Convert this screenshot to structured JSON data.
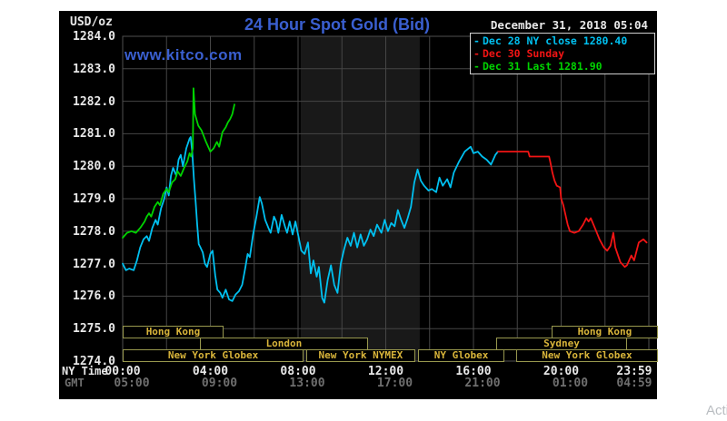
{
  "header": {
    "unit": "USD/oz",
    "title": "24 Hour Spot Gold (Bid)",
    "datetime": "December 31, 2018 05:04",
    "watermark": "www.kitco.com",
    "title_color": "#3a5fd0"
  },
  "legend": {
    "items": [
      {
        "dash": "-",
        "label": "Dec 28 NY close 1280.40",
        "color": "#00c0f0"
      },
      {
        "dash": "-",
        "label": "Dec 30 Sunday",
        "color": "#f21414"
      },
      {
        "dash": "-",
        "label": "Dec 31 Last 1281.90",
        "color": "#00d300"
      }
    ]
  },
  "axes": {
    "y_ticks": [
      "1284.0",
      "1283.0",
      "1282.0",
      "1281.0",
      "1280.0",
      "1279.0",
      "1278.0",
      "1277.0",
      "1276.0",
      "1275.0",
      "1274.0"
    ],
    "ny_label": "NY Time",
    "gmt_label": "GMT",
    "ny_ticks": [
      {
        "t": 0,
        "label": "00:00"
      },
      {
        "t": 4,
        "label": "04:00"
      },
      {
        "t": 8,
        "label": "08:00"
      },
      {
        "t": 12,
        "label": "12:00"
      },
      {
        "t": 16,
        "label": "16:00"
      },
      {
        "t": 20,
        "label": "20:00"
      },
      {
        "t": 23.98,
        "label": "23:59",
        "align": "right"
      }
    ],
    "gmt_ticks": [
      {
        "t": 0,
        "label": "05:00"
      },
      {
        "t": 4,
        "label": "09:00"
      },
      {
        "t": 8,
        "label": "13:00"
      },
      {
        "t": 12,
        "label": "17:00"
      },
      {
        "t": 16,
        "label": "21:00"
      },
      {
        "t": 20,
        "label": "01:00"
      },
      {
        "t": 23.98,
        "label": "04:59",
        "align": "right"
      }
    ]
  },
  "sessions": [
    {
      "row": 1,
      "label": "Hong Kong",
      "start": 0,
      "end": 4.52
    },
    {
      "row": 1,
      "label": "Hong Kong",
      "start": 19.56,
      "end": 24.33
    },
    {
      "row": 2,
      "label": "London",
      "start": 3.52,
      "end": 11.11
    },
    {
      "row": 2,
      "label": "Sydney",
      "start": 17.04,
      "end": 22.92
    },
    {
      "row": 3,
      "label": "New York Globex",
      "start": 0,
      "end": 8.17
    },
    {
      "row": 3,
      "label": "New York NYMEX",
      "start": 8.37,
      "end": 13.26
    },
    {
      "row": 3,
      "label": "NY Globex",
      "start": 13.47,
      "end": 17.33
    },
    {
      "row": 3,
      "label": "New York Globex",
      "start": 17.95,
      "end": 24.33
    }
  ],
  "artifact_text": "Activ",
  "chart_data": {
    "type": "line",
    "title": "24 Hour Spot Gold (Bid)",
    "subtitle": "December 31, 2018 05:04",
    "xlabel": "NY Time",
    "ylabel": "USD/oz",
    "x_range_hours": [
      0,
      24
    ],
    "ylim": [
      1274.0,
      1284.0
    ],
    "y_tick_step": 1.0,
    "grid": true,
    "grid_color": "#464646",
    "background": "#000000",
    "nymex_band_hours": [
      8.12,
      13.55
    ],
    "band_color": "#191919",
    "legend_position": "top-right",
    "series": [
      {
        "name": "Dec 28 NY close 1280.40",
        "color": "#00c0f0",
        "points": [
          [
            0.0,
            1277.0
          ],
          [
            0.15,
            1276.8
          ],
          [
            0.3,
            1276.85
          ],
          [
            0.5,
            1276.8
          ],
          [
            0.65,
            1277.1
          ],
          [
            0.8,
            1277.5
          ],
          [
            0.95,
            1277.75
          ],
          [
            1.1,
            1277.85
          ],
          [
            1.2,
            1277.7
          ],
          [
            1.35,
            1278.1
          ],
          [
            1.5,
            1278.35
          ],
          [
            1.6,
            1278.2
          ],
          [
            1.75,
            1278.7
          ],
          [
            1.9,
            1279.0
          ],
          [
            2.0,
            1279.35
          ],
          [
            2.1,
            1279.1
          ],
          [
            2.2,
            1279.7
          ],
          [
            2.3,
            1279.95
          ],
          [
            2.45,
            1279.7
          ],
          [
            2.55,
            1280.2
          ],
          [
            2.65,
            1280.35
          ],
          [
            2.75,
            1280.0
          ],
          [
            2.9,
            1280.55
          ],
          [
            3.05,
            1280.85
          ],
          [
            3.1,
            1280.9
          ],
          [
            3.17,
            1280.45
          ],
          [
            3.25,
            1279.6
          ],
          [
            3.33,
            1278.9
          ],
          [
            3.4,
            1278.2
          ],
          [
            3.47,
            1277.6
          ],
          [
            3.55,
            1277.5
          ],
          [
            3.65,
            1277.35
          ],
          [
            3.75,
            1277.0
          ],
          [
            3.85,
            1276.9
          ],
          [
            4.0,
            1277.3
          ],
          [
            4.1,
            1277.4
          ],
          [
            4.22,
            1276.65
          ],
          [
            4.32,
            1276.2
          ],
          [
            4.45,
            1276.1
          ],
          [
            4.55,
            1275.95
          ],
          [
            4.7,
            1276.2
          ],
          [
            4.85,
            1275.9
          ],
          [
            5.0,
            1275.85
          ],
          [
            5.15,
            1276.05
          ],
          [
            5.3,
            1276.15
          ],
          [
            5.45,
            1276.35
          ],
          [
            5.6,
            1276.9
          ],
          [
            5.7,
            1277.3
          ],
          [
            5.8,
            1277.2
          ],
          [
            5.95,
            1277.9
          ],
          [
            6.1,
            1278.45
          ],
          [
            6.25,
            1279.05
          ],
          [
            6.35,
            1278.85
          ],
          [
            6.5,
            1278.35
          ],
          [
            6.65,
            1278.1
          ],
          [
            6.75,
            1277.95
          ],
          [
            6.9,
            1278.45
          ],
          [
            7.0,
            1278.3
          ],
          [
            7.1,
            1277.95
          ],
          [
            7.25,
            1278.5
          ],
          [
            7.4,
            1278.15
          ],
          [
            7.5,
            1277.95
          ],
          [
            7.62,
            1278.3
          ],
          [
            7.75,
            1277.9
          ],
          [
            7.88,
            1278.3
          ],
          [
            8.0,
            1277.9
          ],
          [
            8.15,
            1277.4
          ],
          [
            8.3,
            1277.3
          ],
          [
            8.45,
            1277.65
          ],
          [
            8.58,
            1276.7
          ],
          [
            8.7,
            1277.1
          ],
          [
            8.85,
            1276.6
          ],
          [
            8.95,
            1276.9
          ],
          [
            9.1,
            1275.95
          ],
          [
            9.2,
            1275.8
          ],
          [
            9.35,
            1276.5
          ],
          [
            9.5,
            1276.95
          ],
          [
            9.65,
            1276.35
          ],
          [
            9.8,
            1276.1
          ],
          [
            9.95,
            1277.0
          ],
          [
            10.1,
            1277.45
          ],
          [
            10.25,
            1277.8
          ],
          [
            10.4,
            1277.55
          ],
          [
            10.55,
            1277.95
          ],
          [
            10.7,
            1277.5
          ],
          [
            10.85,
            1277.9
          ],
          [
            11.0,
            1277.55
          ],
          [
            11.15,
            1277.75
          ],
          [
            11.3,
            1278.05
          ],
          [
            11.45,
            1277.85
          ],
          [
            11.6,
            1278.2
          ],
          [
            11.8,
            1277.95
          ],
          [
            11.95,
            1278.35
          ],
          [
            12.1,
            1278.0
          ],
          [
            12.25,
            1278.25
          ],
          [
            12.4,
            1278.15
          ],
          [
            12.55,
            1278.65
          ],
          [
            12.7,
            1278.35
          ],
          [
            12.85,
            1278.1
          ],
          [
            13.0,
            1278.4
          ],
          [
            13.15,
            1278.75
          ],
          [
            13.3,
            1279.5
          ],
          [
            13.45,
            1279.9
          ],
          [
            13.6,
            1279.55
          ],
          [
            13.75,
            1279.4
          ],
          [
            13.95,
            1279.25
          ],
          [
            14.1,
            1279.3
          ],
          [
            14.3,
            1279.2
          ],
          [
            14.45,
            1279.65
          ],
          [
            14.6,
            1279.4
          ],
          [
            14.8,
            1279.6
          ],
          [
            14.95,
            1279.35
          ],
          [
            15.1,
            1279.8
          ],
          [
            15.35,
            1280.15
          ],
          [
            15.6,
            1280.45
          ],
          [
            15.87,
            1280.6
          ],
          [
            16.0,
            1280.4
          ],
          [
            16.2,
            1280.45
          ],
          [
            16.4,
            1280.3
          ],
          [
            16.6,
            1280.2
          ],
          [
            16.8,
            1280.05
          ],
          [
            17.0,
            1280.35
          ],
          [
            17.12,
            1280.45
          ]
        ]
      },
      {
        "name": "Dec 30 Sunday",
        "color": "#f21414",
        "points": [
          [
            17.12,
            1280.45
          ],
          [
            18.5,
            1280.45
          ],
          [
            18.56,
            1280.3
          ],
          [
            19.45,
            1280.3
          ],
          [
            19.5,
            1280.15
          ],
          [
            19.6,
            1279.8
          ],
          [
            19.7,
            1279.55
          ],
          [
            19.8,
            1279.4
          ],
          [
            19.95,
            1279.35
          ],
          [
            20.0,
            1279.0
          ],
          [
            20.1,
            1278.8
          ],
          [
            20.3,
            1278.2
          ],
          [
            20.4,
            1278.0
          ],
          [
            20.6,
            1277.95
          ],
          [
            20.8,
            1278.0
          ],
          [
            21.0,
            1278.2
          ],
          [
            21.15,
            1278.4
          ],
          [
            21.25,
            1278.3
          ],
          [
            21.35,
            1278.4
          ],
          [
            21.6,
            1278.0
          ],
          [
            21.75,
            1277.75
          ],
          [
            21.95,
            1277.5
          ],
          [
            22.1,
            1277.4
          ],
          [
            22.25,
            1277.55
          ],
          [
            22.38,
            1277.95
          ],
          [
            22.47,
            1277.5
          ],
          [
            22.7,
            1277.05
          ],
          [
            22.9,
            1276.9
          ],
          [
            23.0,
            1276.95
          ],
          [
            23.2,
            1277.25
          ],
          [
            23.33,
            1277.1
          ],
          [
            23.54,
            1277.65
          ],
          [
            23.75,
            1277.75
          ],
          [
            23.9,
            1277.65
          ]
        ]
      },
      {
        "name": "Dec 31 Last 1281.90",
        "color": "#00d300",
        "points": [
          [
            0.0,
            1277.8
          ],
          [
            0.2,
            1277.95
          ],
          [
            0.4,
            1278.0
          ],
          [
            0.6,
            1277.95
          ],
          [
            0.8,
            1278.1
          ],
          [
            1.0,
            1278.3
          ],
          [
            1.1,
            1278.45
          ],
          [
            1.2,
            1278.55
          ],
          [
            1.3,
            1278.45
          ],
          [
            1.45,
            1278.75
          ],
          [
            1.6,
            1278.9
          ],
          [
            1.7,
            1278.8
          ],
          [
            1.85,
            1279.15
          ],
          [
            2.0,
            1279.3
          ],
          [
            2.1,
            1279.2
          ],
          [
            2.25,
            1279.5
          ],
          [
            2.4,
            1279.6
          ],
          [
            2.5,
            1279.85
          ],
          [
            2.65,
            1279.7
          ],
          [
            2.8,
            1279.95
          ],
          [
            2.95,
            1280.15
          ],
          [
            3.05,
            1280.4
          ],
          [
            3.12,
            1280.3
          ],
          [
            3.2,
            1280.55
          ],
          [
            3.23,
            1282.4
          ],
          [
            3.3,
            1281.6
          ],
          [
            3.45,
            1281.25
          ],
          [
            3.6,
            1281.1
          ],
          [
            3.8,
            1280.75
          ],
          [
            3.9,
            1280.6
          ],
          [
            4.0,
            1280.45
          ],
          [
            4.15,
            1280.55
          ],
          [
            4.3,
            1280.75
          ],
          [
            4.4,
            1280.6
          ],
          [
            4.55,
            1281.05
          ],
          [
            4.7,
            1281.2
          ],
          [
            4.8,
            1281.35
          ],
          [
            4.9,
            1281.45
          ],
          [
            5.0,
            1281.6
          ],
          [
            5.1,
            1281.9
          ]
        ]
      }
    ]
  }
}
